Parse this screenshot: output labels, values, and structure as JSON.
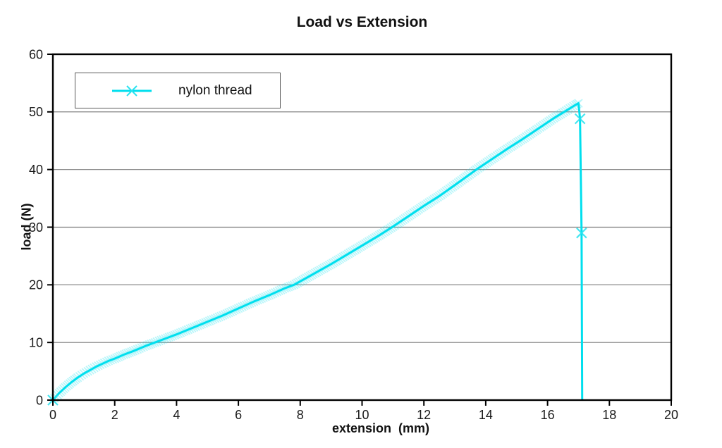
{
  "title": "Load vs Extension",
  "axes": {
    "x_label": "extension  (mm)",
    "y_label": "load (N)"
  },
  "legend": {
    "label": "nylon thread"
  },
  "colors": {
    "series_line": "#00dfee",
    "series_marker": "#27e2ef",
    "grid": "#7a7a7a",
    "axis": "#000000",
    "background": "#ffffff",
    "text": "#111111"
  },
  "chart_data": {
    "type": "line",
    "title": "Load vs Extension",
    "xlabel": "extension  (mm)",
    "ylabel": "load (N)",
    "xlim": [
      0,
      20
    ],
    "ylim": [
      0,
      60
    ],
    "x_ticks": [
      0,
      2,
      4,
      6,
      8,
      10,
      12,
      14,
      16,
      18,
      20
    ],
    "y_ticks": [
      0,
      10,
      20,
      30,
      40,
      50,
      60
    ],
    "grid": "horizontal",
    "legend_position": "top-left-inside",
    "series": [
      {
        "name": "nylon thread",
        "marker": "x",
        "color": "#00dfee",
        "points": [
          [
            0,
            0
          ],
          [
            0.2,
            1.2
          ],
          [
            0.4,
            2.2
          ],
          [
            0.6,
            3.1
          ],
          [
            0.8,
            3.9
          ],
          [
            1.0,
            4.6
          ],
          [
            1.2,
            5.2
          ],
          [
            1.4,
            5.8
          ],
          [
            1.6,
            6.3
          ],
          [
            1.8,
            6.8
          ],
          [
            2.0,
            7.2
          ],
          [
            2.3,
            7.9
          ],
          [
            2.6,
            8.5
          ],
          [
            3.0,
            9.4
          ],
          [
            3.3,
            10.0
          ],
          [
            3.7,
            10.8
          ],
          [
            4.0,
            11.4
          ],
          [
            4.5,
            12.5
          ],
          [
            5.0,
            13.6
          ],
          [
            5.5,
            14.7
          ],
          [
            6.0,
            15.9
          ],
          [
            6.5,
            17.1
          ],
          [
            7.0,
            18.2
          ],
          [
            7.5,
            19.4
          ],
          [
            7.8,
            20.0
          ],
          [
            8.2,
            21.2
          ],
          [
            8.6,
            22.4
          ],
          [
            9.0,
            23.6
          ],
          [
            9.5,
            25.2
          ],
          [
            10.0,
            26.8
          ],
          [
            10.5,
            28.4
          ],
          [
            11.0,
            30.1
          ],
          [
            11.5,
            31.9
          ],
          [
            12.0,
            33.7
          ],
          [
            12.5,
            35.4
          ],
          [
            13.0,
            37.3
          ],
          [
            13.7,
            40.0
          ],
          [
            14.2,
            41.8
          ],
          [
            14.7,
            43.6
          ],
          [
            15.2,
            45.3
          ],
          [
            15.7,
            47.1
          ],
          [
            16.2,
            48.9
          ],
          [
            16.6,
            50.2
          ],
          [
            16.9,
            51.2
          ],
          [
            17.0,
            51.5
          ],
          [
            17.05,
            48.8
          ],
          [
            17.1,
            29.0
          ],
          [
            17.12,
            0
          ]
        ]
      }
    ]
  }
}
